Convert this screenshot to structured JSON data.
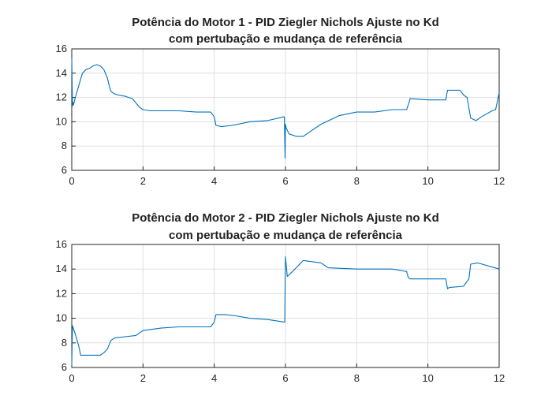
{
  "chart_data": [
    {
      "type": "line",
      "title": [
        "Potência do Motor 1 - PID Ziegler Nichols Ajuste no Kd",
        "com pertubação e mudança de referência"
      ],
      "xlim": [
        0,
        12
      ],
      "ylim": [
        6,
        16
      ],
      "xticks": [
        "0",
        "2",
        "4",
        "6",
        "8",
        "10",
        "12"
      ],
      "yticks": [
        "6",
        "8",
        "10",
        "12",
        "14",
        "16"
      ],
      "grid": true,
      "color": "#0072BD",
      "series": [
        {
          "x": [
            0,
            0.02,
            0.03,
            0.05,
            0.1,
            0.2,
            0.3,
            0.4,
            0.5,
            0.6,
            0.7,
            0.8,
            0.9,
            1.0,
            1.05,
            1.1,
            1.2,
            1.3,
            1.5,
            1.7,
            1.9,
            2.0,
            2.2,
            2.5,
            3.0,
            3.5,
            3.9,
            4.0,
            4.05,
            4.2,
            4.5,
            5.0,
            5.5,
            5.95,
            5.97,
            5.99,
            6.0,
            6.02,
            6.1,
            6.3,
            6.5,
            6.7,
            7.0,
            7.5,
            8.0,
            8.5,
            9.0,
            9.4,
            9.45,
            9.5,
            10.0,
            10.5,
            10.55,
            10.6,
            10.9,
            11.0,
            11.1,
            11.2,
            11.35,
            11.5,
            11.8,
            11.9,
            12.0
          ],
          "y": [
            15.2,
            11.3,
            11.6,
            11.4,
            12.0,
            13.0,
            14.0,
            14.3,
            14.4,
            14.6,
            14.7,
            14.6,
            14.3,
            13.6,
            13.0,
            12.5,
            12.3,
            12.2,
            12.1,
            11.9,
            11.2,
            11.0,
            10.9,
            10.9,
            10.9,
            10.8,
            10.8,
            10.4,
            9.7,
            9.6,
            9.7,
            10.0,
            10.1,
            10.4,
            10.4,
            7.0,
            9.8,
            9.5,
            9.0,
            8.8,
            8.8,
            9.2,
            9.8,
            10.5,
            10.8,
            10.8,
            11.0,
            11.0,
            11.4,
            11.9,
            11.8,
            11.8,
            12.6,
            12.6,
            12.6,
            12.2,
            12.0,
            10.3,
            10.1,
            10.4,
            10.9,
            11.0,
            12.4
          ]
        }
      ]
    },
    {
      "type": "line",
      "title": [
        "Potência do Motor 2 - PID Ziegler Nichols Ajuste no Kd",
        "com pertubação e mudança de referência"
      ],
      "xlim": [
        0,
        12
      ],
      "ylim": [
        6,
        16
      ],
      "xticks": [
        "0",
        "2",
        "4",
        "6",
        "8",
        "10",
        "12"
      ],
      "yticks": [
        "6",
        "8",
        "10",
        "12",
        "14",
        "16"
      ],
      "grid": true,
      "color": "#0072BD",
      "series": [
        {
          "x": [
            0,
            0.02,
            0.1,
            0.2,
            0.25,
            0.5,
            0.8,
            0.9,
            1.0,
            1.1,
            1.2,
            1.5,
            1.8,
            1.9,
            2.0,
            2.5,
            3.0,
            3.5,
            3.9,
            4.0,
            4.05,
            4.3,
            4.6,
            5.0,
            5.5,
            5.95,
            5.98,
            6.0,
            6.05,
            6.2,
            6.5,
            7.0,
            7.2,
            8.0,
            8.5,
            9.0,
            9.4,
            9.45,
            9.5,
            10.0,
            10.5,
            10.55,
            10.6,
            11.0,
            11.15,
            11.2,
            11.4,
            12.0
          ],
          "y": [
            6.2,
            9.4,
            8.7,
            7.7,
            7.0,
            7.0,
            7.0,
            7.2,
            7.5,
            8.2,
            8.4,
            8.5,
            8.6,
            8.8,
            9.0,
            9.2,
            9.3,
            9.3,
            9.3,
            9.7,
            10.3,
            10.3,
            10.2,
            10.0,
            9.9,
            9.7,
            9.7,
            15.0,
            13.4,
            13.8,
            14.7,
            14.5,
            14.1,
            14.0,
            14.0,
            14.0,
            13.8,
            13.3,
            13.2,
            13.2,
            13.2,
            12.4,
            12.5,
            12.6,
            13.2,
            14.4,
            14.5,
            14.0
          ]
        }
      ]
    }
  ]
}
